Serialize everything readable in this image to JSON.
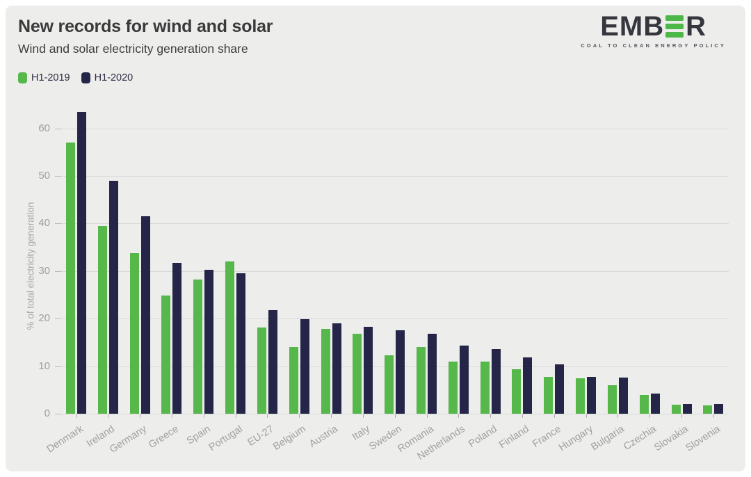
{
  "header": {
    "title": "New records for wind and solar",
    "subtitle": "Wind and solar electricity generation share"
  },
  "logo": {
    "text_before": "EMB",
    "text_after": "R",
    "tagline": "COAL TO CLEAN ENERGY POLICY",
    "bar_color": "#4db848"
  },
  "chart_data": {
    "type": "bar",
    "title": "New records for wind and solar",
    "subtitle": "Wind and solar electricity generation share",
    "ylabel": "% of total electricity generation",
    "ylim": [
      0,
      65
    ],
    "yticks": [
      0,
      10,
      20,
      30,
      40,
      50,
      60
    ],
    "grid": true,
    "legend_position": "top-left",
    "categories": [
      "Denmark",
      "Ireland",
      "Germany",
      "Greece",
      "Spain",
      "Portugal",
      "EU-27",
      "Belgium",
      "Austria",
      "Italy",
      "Sweden",
      "Romania",
      "Netherlands",
      "Poland",
      "Finland",
      "France",
      "Hungary",
      "Bulgaria",
      "Czechia",
      "Slovakia",
      "Slovenia"
    ],
    "series": [
      {
        "name": "H1-2019",
        "color": "#56b84b",
        "values": [
          57.0,
          39.5,
          33.8,
          24.9,
          28.2,
          32.0,
          18.2,
          14.0,
          17.8,
          16.8,
          12.3,
          14.1,
          11.0,
          10.9,
          9.4,
          7.7,
          7.5,
          6.0,
          3.9,
          1.9,
          1.7
        ]
      },
      {
        "name": "H1-2020",
        "color": "#252547",
        "values": [
          63.5,
          49.0,
          41.5,
          31.7,
          30.3,
          29.5,
          21.8,
          19.9,
          19.0,
          18.3,
          17.5,
          16.8,
          14.4,
          13.6,
          11.8,
          10.4,
          7.8,
          7.6,
          4.3,
          2.1,
          2.0
        ]
      }
    ]
  },
  "colors": {
    "page_bg": "#ffffff",
    "card_bg": "#ededec",
    "grid": "#d8d8d8",
    "axis_text": "#9e9e9e",
    "title_text": "#3a3a3a"
  }
}
